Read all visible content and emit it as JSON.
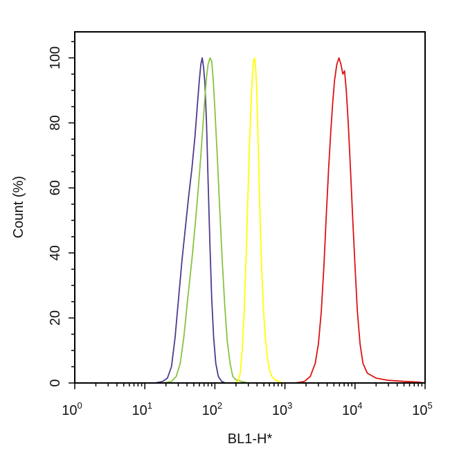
{
  "chart_data": {
    "type": "line",
    "xlabel": "BL1-H*",
    "ylabel": "Count (%)",
    "x_scale": "log",
    "xlim": [
      1,
      100000
    ],
    "ylim": [
      0,
      108
    ],
    "y_ticks": [
      0,
      20,
      40,
      60,
      80,
      100
    ],
    "y_tick_labels": [
      "0",
      "20",
      "40",
      "60",
      "80",
      "100"
    ],
    "x_ticks": [
      1,
      10,
      100,
      1000,
      10000,
      100000
    ],
    "x_tick_labels": [
      {
        "base": "10",
        "exp": "0"
      },
      {
        "base": "10",
        "exp": "1"
      },
      {
        "base": "10",
        "exp": "2"
      },
      {
        "base": "10",
        "exp": "3"
      },
      {
        "base": "10",
        "exp": "4"
      },
      {
        "base": "10",
        "exp": "5"
      }
    ],
    "grid": false,
    "series": [
      {
        "color": "#4b3a8c",
        "points": [
          [
            10,
            0
          ],
          [
            14,
            0
          ],
          [
            18,
            0.5
          ],
          [
            21,
            1.5
          ],
          [
            24,
            5
          ],
          [
            27,
            14
          ],
          [
            30,
            25
          ],
          [
            34,
            38
          ],
          [
            38,
            48
          ],
          [
            42,
            57
          ],
          [
            47,
            66
          ],
          [
            52,
            76
          ],
          [
            56,
            85
          ],
          [
            60,
            93
          ],
          [
            63,
            98
          ],
          [
            66,
            100
          ],
          [
            69,
            97
          ],
          [
            72,
            92
          ],
          [
            76,
            80
          ],
          [
            80,
            62
          ],
          [
            85,
            42
          ],
          [
            90,
            26
          ],
          [
            96,
            14
          ],
          [
            103,
            6
          ],
          [
            112,
            2
          ],
          [
            125,
            0.5
          ],
          [
            140,
            0
          ],
          [
            200,
            0
          ]
        ]
      },
      {
        "color": "#86c23e",
        "points": [
          [
            12,
            0
          ],
          [
            18,
            0
          ],
          [
            24,
            0.5
          ],
          [
            28,
            2
          ],
          [
            32,
            6
          ],
          [
            36,
            14
          ],
          [
            41,
            26
          ],
          [
            47,
            38
          ],
          [
            53,
            50
          ],
          [
            58,
            60
          ],
          [
            63,
            70
          ],
          [
            68,
            80
          ],
          [
            72,
            88
          ],
          [
            76,
            94
          ],
          [
            80,
            98
          ],
          [
            85,
            100
          ],
          [
            90,
            99
          ],
          [
            95,
            93
          ],
          [
            100,
            84
          ],
          [
            108,
            70
          ],
          [
            117,
            54
          ],
          [
            127,
            38
          ],
          [
            138,
            24
          ],
          [
            150,
            13
          ],
          [
            165,
            6
          ],
          [
            180,
            2
          ],
          [
            200,
            1
          ],
          [
            240,
            0.5
          ],
          [
            300,
            0
          ]
        ]
      },
      {
        "color": "#ffff00",
        "points": [
          [
            150,
            0
          ],
          [
            190,
            0
          ],
          [
            215,
            0.5
          ],
          [
            230,
            3
          ],
          [
            245,
            10
          ],
          [
            262,
            22
          ],
          [
            280,
            40
          ],
          [
            297,
            58
          ],
          [
            313,
            74
          ],
          [
            328,
            86
          ],
          [
            342,
            94
          ],
          [
            356,
            99
          ],
          [
            368,
            100
          ],
          [
            382,
            97
          ],
          [
            395,
            90
          ],
          [
            410,
            78
          ],
          [
            428,
            62
          ],
          [
            448,
            46
          ],
          [
            470,
            33
          ],
          [
            495,
            22
          ],
          [
            525,
            14
          ],
          [
            560,
            8
          ],
          [
            600,
            4
          ],
          [
            650,
            2
          ],
          [
            720,
            1
          ],
          [
            800,
            0.5
          ],
          [
            950,
            0
          ],
          [
            1500,
            0
          ]
        ]
      },
      {
        "color": "#dd1111",
        "points": [
          [
            1000,
            0
          ],
          [
            1400,
            0
          ],
          [
            1900,
            0.5
          ],
          [
            2300,
            2
          ],
          [
            2700,
            6
          ],
          [
            3000,
            12
          ],
          [
            3300,
            22
          ],
          [
            3600,
            36
          ],
          [
            3900,
            52
          ],
          [
            4200,
            66
          ],
          [
            4500,
            77
          ],
          [
            4800,
            86
          ],
          [
            5100,
            93
          ],
          [
            5500,
            98
          ],
          [
            5900,
            100
          ],
          [
            6300,
            98
          ],
          [
            6700,
            95
          ],
          [
            7100,
            96
          ],
          [
            7500,
            90
          ],
          [
            8000,
            80
          ],
          [
            8600,
            66
          ],
          [
            9300,
            50
          ],
          [
            10000,
            36
          ],
          [
            10800,
            22
          ],
          [
            11800,
            12
          ],
          [
            13000,
            6
          ],
          [
            15000,
            3
          ],
          [
            20000,
            1.5
          ],
          [
            30000,
            0.8
          ],
          [
            50000,
            0.5
          ],
          [
            80000,
            0.3
          ],
          [
            100000,
            0
          ]
        ]
      }
    ]
  }
}
